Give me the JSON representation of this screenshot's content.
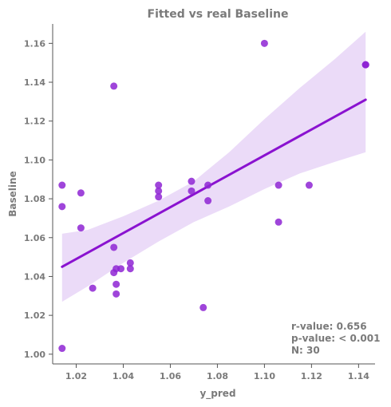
{
  "chart_data": {
    "type": "scatter",
    "title": "Fitted vs real Baseline",
    "xlabel": "y_pred",
    "ylabel": "Baseline",
    "xlim": [
      1.01,
      1.147
    ],
    "ylim": [
      0.995,
      1.17
    ],
    "xticks": [
      "1.02",
      "1.04",
      "1.06",
      "1.08",
      "1.10",
      "1.12",
      "1.14"
    ],
    "xtick_values": [
      1.02,
      1.04,
      1.06,
      1.08,
      1.1,
      1.12,
      1.14
    ],
    "yticks": [
      "1.00",
      "1.02",
      "1.04",
      "1.06",
      "1.08",
      "1.10",
      "1.12",
      "1.14",
      "1.16"
    ],
    "ytick_values": [
      1.0,
      1.02,
      1.04,
      1.06,
      1.08,
      1.1,
      1.12,
      1.14,
      1.16
    ],
    "grid": false,
    "points": [
      {
        "x": 1.014,
        "y": 1.003
      },
      {
        "x": 1.014,
        "y": 1.076
      },
      {
        "x": 1.014,
        "y": 1.087
      },
      {
        "x": 1.022,
        "y": 1.065
      },
      {
        "x": 1.022,
        "y": 1.083
      },
      {
        "x": 1.027,
        "y": 1.034
      },
      {
        "x": 1.036,
        "y": 1.042
      },
      {
        "x": 1.036,
        "y": 1.055
      },
      {
        "x": 1.036,
        "y": 1.138
      },
      {
        "x": 1.037,
        "y": 1.031
      },
      {
        "x": 1.037,
        "y": 1.036
      },
      {
        "x": 1.037,
        "y": 1.044
      },
      {
        "x": 1.039,
        "y": 1.044
      },
      {
        "x": 1.043,
        "y": 1.047
      },
      {
        "x": 1.043,
        "y": 1.044
      },
      {
        "x": 1.055,
        "y": 1.081
      },
      {
        "x": 1.055,
        "y": 1.084
      },
      {
        "x": 1.055,
        "y": 1.087
      },
      {
        "x": 1.069,
        "y": 1.084
      },
      {
        "x": 1.069,
        "y": 1.089
      },
      {
        "x": 1.074,
        "y": 1.024
      },
      {
        "x": 1.076,
        "y": 1.079
      },
      {
        "x": 1.076,
        "y": 1.087
      },
      {
        "x": 1.1,
        "y": 1.16
      },
      {
        "x": 1.106,
        "y": 1.068
      },
      {
        "x": 1.106,
        "y": 1.087
      },
      {
        "x": 1.119,
        "y": 1.087
      },
      {
        "x": 1.143,
        "y": 1.149
      },
      {
        "x": 1.143,
        "y": 1.149
      },
      {
        "x": 1.143,
        "y": 1.149
      }
    ],
    "regression": {
      "x": [
        1.014,
        1.143
      ],
      "y": [
        1.045,
        1.131
      ]
    },
    "confidence_band": {
      "x": [
        1.014,
        1.025,
        1.04,
        1.055,
        1.07,
        1.085,
        1.1,
        1.115,
        1.13,
        1.143
      ],
      "upper": [
        1.062,
        1.064,
        1.071,
        1.079,
        1.089,
        1.104,
        1.121,
        1.137,
        1.152,
        1.166
      ],
      "lower": [
        1.027,
        1.035,
        1.047,
        1.058,
        1.068,
        1.076,
        1.085,
        1.093,
        1.099,
        1.104
      ]
    },
    "colors": {
      "point": "#8e24d4",
      "line": "#8a12d0",
      "band": "#e8d5f7"
    },
    "annotation": [
      "r-value: 0.656",
      "p-value: < 0.001",
      "N: 30"
    ],
    "annotation_placement": "bottom-right"
  }
}
